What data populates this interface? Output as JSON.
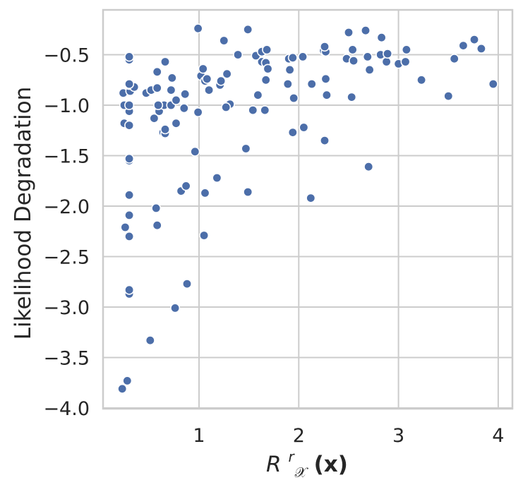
{
  "chart_data": {
    "type": "scatter",
    "title": "",
    "xlabel_parts": {
      "base": "R",
      "sup": "r",
      "sub": "𝒳",
      "arg": "(x)"
    },
    "ylabel": "Likelihood Degradation",
    "xlim": [
      0.1,
      4.15
    ],
    "ylim": [
      -4.0,
      -0.1
    ],
    "x_ticks": [
      1,
      2,
      3,
      4
    ],
    "y_ticks": [
      -4.0,
      -3.5,
      -3.0,
      -2.5,
      -2.0,
      -1.5,
      -1.0,
      -0.5
    ],
    "x_tick_labels": [
      "1",
      "2",
      "3",
      "4"
    ],
    "y_tick_labels": [
      "−4.0",
      "−3.5",
      "−3.0",
      "−2.5",
      "−2.0",
      "−1.5",
      "−1.0",
      "−0.5"
    ],
    "grid": true,
    "color": "#4c6ea9",
    "points": [
      [
        0.23,
        -3.81
      ],
      [
        0.28,
        -3.73
      ],
      [
        0.51,
        -3.33
      ],
      [
        0.76,
        -3.01
      ],
      [
        0.3,
        -2.87
      ],
      [
        0.3,
        -2.83
      ],
      [
        0.88,
        -2.77
      ],
      [
        0.26,
        -2.21
      ],
      [
        0.3,
        -2.3
      ],
      [
        0.58,
        -2.19
      ],
      [
        1.05,
        -2.29
      ],
      [
        0.3,
        -2.09
      ],
      [
        0.57,
        -2.02
      ],
      [
        0.3,
        -1.89
      ],
      [
        0.82,
        -1.85
      ],
      [
        0.87,
        -1.8
      ],
      [
        1.06,
        -1.87
      ],
      [
        1.18,
        -1.72
      ],
      [
        1.49,
        -1.86
      ],
      [
        2.12,
        -1.92
      ],
      [
        2.7,
        -1.61
      ],
      [
        0.3,
        -1.55
      ],
      [
        0.3,
        -1.53
      ],
      [
        0.96,
        -1.46
      ],
      [
        1.47,
        -1.43
      ],
      [
        2.26,
        -1.35
      ],
      [
        1.94,
        -1.27
      ],
      [
        2.05,
        -1.22
      ],
      [
        0.64,
        -1.27
      ],
      [
        0.66,
        -1.28
      ],
      [
        0.66,
        -1.24
      ],
      [
        0.77,
        -1.18
      ],
      [
        0.25,
        -1.18
      ],
      [
        0.3,
        -1.2
      ],
      [
        0.55,
        -1.13
      ],
      [
        0.3,
        -1.06
      ],
      [
        0.6,
        -1.06
      ],
      [
        0.25,
        -1.0
      ],
      [
        0.65,
        -1.0
      ],
      [
        0.99,
        -1.07
      ],
      [
        1.31,
        -0.99
      ],
      [
        1.27,
        -1.02
      ],
      [
        1.54,
        -1.05
      ],
      [
        1.66,
        -1.05
      ],
      [
        0.3,
        -1.0
      ],
      [
        0.59,
        -1.0
      ],
      [
        0.72,
        -1.0
      ],
      [
        0.85,
        -1.03
      ],
      [
        0.77,
        -0.95
      ],
      [
        0.24,
        -0.88
      ],
      [
        0.31,
        -0.86
      ],
      [
        0.47,
        -0.88
      ],
      [
        0.52,
        -0.85
      ],
      [
        0.58,
        -0.83
      ],
      [
        0.72,
        -0.85
      ],
      [
        0.86,
        -0.89
      ],
      [
        0.3,
        -0.8
      ],
      [
        0.35,
        -0.82
      ],
      [
        0.3,
        -0.79
      ],
      [
        0.73,
        -0.73
      ],
      [
        1.02,
        -0.71
      ],
      [
        1.06,
        -0.76
      ],
      [
        1.08,
        -0.74
      ],
      [
        1.1,
        -0.85
      ],
      [
        1.21,
        -0.8
      ],
      [
        1.22,
        -0.76
      ],
      [
        1.28,
        -0.69
      ],
      [
        1.59,
        -0.9
      ],
      [
        1.67,
        -0.75
      ],
      [
        1.89,
        -0.79
      ],
      [
        1.95,
        -0.93
      ],
      [
        2.13,
        -0.79
      ],
      [
        2.28,
        -0.9
      ],
      [
        2.27,
        -0.74
      ],
      [
        2.53,
        -0.92
      ],
      [
        3.23,
        -0.75
      ],
      [
        3.5,
        -0.91
      ],
      [
        3.95,
        -0.79
      ],
      [
        0.58,
        -0.67
      ],
      [
        0.66,
        -0.57
      ],
      [
        1.04,
        -0.64
      ],
      [
        1.63,
        -0.57
      ],
      [
        1.67,
        -0.58
      ],
      [
        1.69,
        -0.64
      ],
      [
        1.91,
        -0.65
      ],
      [
        1.9,
        -0.54
      ],
      [
        1.94,
        -0.53
      ],
      [
        2.04,
        -0.52
      ],
      [
        2.48,
        -0.54
      ],
      [
        2.55,
        -0.56
      ],
      [
        2.69,
        -0.52
      ],
      [
        2.71,
        -0.65
      ],
      [
        2.82,
        -0.5
      ],
      [
        2.88,
        -0.57
      ],
      [
        2.89,
        -0.49
      ],
      [
        3.0,
        -0.59
      ],
      [
        3.07,
        -0.57
      ],
      [
        3.08,
        -0.45
      ],
      [
        3.56,
        -0.54
      ],
      [
        3.65,
        -0.41
      ],
      [
        3.76,
        -0.35
      ],
      [
        3.83,
        -0.44
      ],
      [
        0.3,
        -0.55
      ],
      [
        0.3,
        -0.52
      ],
      [
        1.39,
        -0.5
      ],
      [
        1.57,
        -0.51
      ],
      [
        1.63,
        -0.47
      ],
      [
        1.68,
        -0.45
      ],
      [
        2.25,
        -0.46
      ],
      [
        2.27,
        -0.47
      ],
      [
        2.26,
        -0.42
      ],
      [
        2.54,
        -0.45
      ],
      [
        2.5,
        -0.28
      ],
      [
        2.67,
        -0.26
      ],
      [
        2.83,
        -0.33
      ],
      [
        1.25,
        -0.36
      ],
      [
        1.49,
        -0.25
      ],
      [
        0.99,
        -0.24
      ]
    ]
  }
}
